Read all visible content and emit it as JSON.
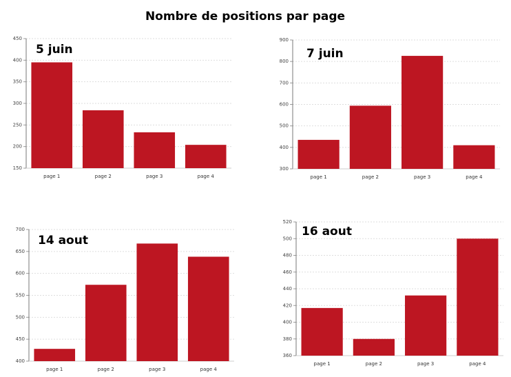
{
  "title": "Nombre de positions par page",
  "chart_data": [
    {
      "type": "bar",
      "title": "5 juin",
      "categories": [
        "page 1",
        "page 2",
        "page 3",
        "page 4"
      ],
      "values": [
        395,
        284,
        233,
        204
      ],
      "color": "#bd1622",
      "ylim": [
        150,
        450
      ],
      "yticks": [
        150,
        200,
        250,
        300,
        350,
        400,
        450
      ],
      "grid": true
    },
    {
      "type": "bar",
      "title": "7 juin",
      "categories": [
        "page 1",
        "page 2",
        "page 3",
        "page 4"
      ],
      "values": [
        435,
        594,
        826,
        410
      ],
      "color": "#bd1622",
      "ylim": [
        300,
        900
      ],
      "yticks": [
        300,
        400,
        500,
        600,
        700,
        800,
        900
      ],
      "grid": true
    },
    {
      "type": "bar",
      "title": "14 aout",
      "categories": [
        "page 1",
        "page 2",
        "page 3",
        "page 4"
      ],
      "values": [
        428,
        574,
        668,
        638
      ],
      "color": "#bd1622",
      "ylim": [
        400,
        700
      ],
      "yticks": [
        400,
        450,
        500,
        550,
        600,
        650,
        700
      ],
      "grid": true
    },
    {
      "type": "bar",
      "title": "16 aout",
      "categories": [
        "page 1",
        "page 2",
        "page 3",
        "page 4"
      ],
      "values": [
        417,
        380,
        432,
        500
      ],
      "color": "#bd1622",
      "ylim": [
        360,
        520
      ],
      "yticks": [
        360,
        380,
        400,
        420,
        440,
        460,
        480,
        500,
        520
      ],
      "grid": true
    }
  ]
}
